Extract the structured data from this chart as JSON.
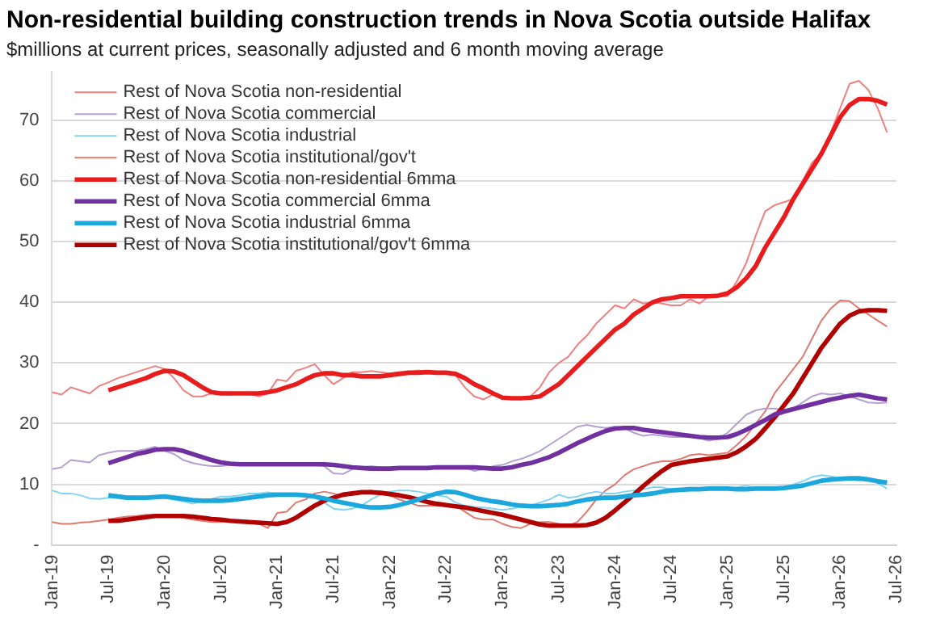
{
  "chart_data": {
    "type": "line",
    "title": "Non-residential building construction trends in Nova Scotia outside Halifax",
    "subtitle": "$millions at current prices, seasonally adjusted and 6 month moving average",
    "categories": [
      "Jan-19",
      null,
      null,
      null,
      null,
      null,
      "Jul-19",
      null,
      null,
      null,
      null,
      null,
      "Jan-20",
      null,
      null,
      null,
      null,
      null,
      "Jul-20",
      null,
      null,
      null,
      null,
      null,
      "Jan-21",
      null,
      null,
      null,
      null,
      null,
      "Jul-21",
      null,
      null,
      null,
      null,
      null,
      "Jan-22",
      null,
      null,
      null,
      null,
      null,
      "Jul-22",
      null,
      null,
      null,
      null,
      null,
      "Jan-23",
      null,
      null,
      null,
      null,
      null,
      "Jul-23",
      null,
      null,
      null,
      null,
      null,
      "Jan-24",
      null,
      null,
      null,
      null,
      null,
      "Jul-24",
      null,
      null,
      null,
      null,
      null,
      "Jan-25",
      null,
      null,
      null,
      null,
      null,
      "Jul-25",
      null,
      null,
      null,
      null,
      null,
      "Jan-26",
      null,
      null,
      null,
      null,
      null,
      "Jul-26"
    ],
    "series": [
      {
        "name": "Rest of Nova Scotia non-residential",
        "color": "#f08080",
        "values": [
          25.2,
          24.8,
          26,
          25.5,
          25,
          26.2,
          26.8,
          27.5,
          28,
          28.5,
          29,
          29.5,
          29,
          27.5,
          25.5,
          24.5,
          24.5,
          25,
          25.2,
          24.8,
          25,
          25,
          24.5,
          25,
          27.3,
          27,
          28.7,
          29.2,
          29.8,
          28,
          26.5,
          27.5,
          28.5,
          28.5,
          28.7,
          28.5,
          28.3,
          28.5,
          28.5,
          28.8,
          28.5,
          28.2,
          28.5,
          28,
          26,
          24.5,
          24,
          24.8,
          24.5,
          24.2,
          24,
          24.5,
          26,
          28.5,
          30,
          31,
          33,
          34.5,
          36.5,
          38,
          39.5,
          39,
          40.5,
          39.8,
          40,
          39.8,
          39.5,
          39.5,
          40.5,
          39.8,
          41,
          41,
          41,
          43.5,
          46.5,
          51,
          55,
          56,
          56.5,
          57,
          60,
          63,
          64.5,
          68,
          72,
          76,
          76.5,
          75,
          72,
          68,
          null
        ]
      },
      {
        "name": "Rest of Nova Scotia commercial",
        "color": "#b4a0d2",
        "values": [
          12.5,
          12.8,
          14,
          13.8,
          13.6,
          14.8,
          15.2,
          15.5,
          15.5,
          15.5,
          15.8,
          16.2,
          15.5,
          15,
          14,
          13.5,
          13.2,
          13,
          13,
          13.2,
          13.3,
          13.3,
          13.2,
          13.3,
          13.2,
          13.2,
          13.3,
          13.3,
          13.2,
          13,
          11.8,
          11.7,
          12.5,
          12.8,
          13,
          12.8,
          12.5,
          12.5,
          12.6,
          12.7,
          12.8,
          12.7,
          13,
          12.9,
          12.8,
          12.2,
          12.5,
          13,
          13.2,
          13.8,
          14.2,
          14.8,
          15.5,
          16.5,
          17.5,
          18.5,
          19.5,
          19.8,
          19.5,
          19.3,
          19.5,
          19.3,
          18.5,
          18,
          18.2,
          18,
          17.8,
          17.8,
          17.8,
          17.6,
          17.2,
          17.5,
          18.5,
          20,
          21.5,
          22.2,
          22.5,
          22.5,
          22.2,
          22.5,
          23.5,
          24.5,
          25,
          24.8,
          25,
          24.5,
          24,
          23.5,
          23.4,
          23.5,
          null
        ]
      },
      {
        "name": "Rest of Nova Scotia industrial",
        "color": "#80d4f0",
        "values": [
          9,
          8.5,
          8.5,
          8.2,
          7.7,
          7.6,
          7.8,
          7.8,
          8,
          8,
          7.8,
          8,
          7.8,
          7.5,
          7.2,
          6.8,
          7.2,
          7.6,
          8,
          8,
          8.2,
          8.5,
          8.5,
          8.7,
          8.5,
          8.2,
          8.2,
          8,
          7.8,
          7,
          6,
          5.8,
          6,
          6.5,
          7.5,
          8.3,
          8.8,
          9,
          9,
          8.8,
          8.5,
          8.2,
          8,
          7,
          6.5,
          6.3,
          6.2,
          6,
          5.8,
          6,
          6.3,
          6.5,
          7,
          7.5,
          8.3,
          7.8,
          8,
          8.5,
          8.8,
          8.5,
          8.5,
          8.8,
          9,
          9.2,
          9.5,
          9.5,
          9.2,
          9.2,
          9.5,
          9.3,
          9.2,
          9.3,
          9.3,
          9.5,
          9.8,
          9.3,
          9.2,
          9.3,
          9.5,
          10,
          10.5,
          11.2,
          11.5,
          11.3,
          11,
          10.8,
          10.6,
          11,
          10.2,
          9.3,
          null
        ]
      },
      {
        "name": "Rest of Nova Scotia institutional/gov't",
        "color": "#e07870",
        "values": [
          3.8,
          3.5,
          3.5,
          3.7,
          3.8,
          4,
          4.2,
          4.5,
          4.7,
          4.8,
          5,
          5,
          5,
          4.8,
          4.5,
          4.2,
          4,
          3.8,
          3.8,
          4,
          4,
          3.8,
          3.5,
          2.8,
          5.3,
          5.5,
          7,
          7.5,
          8.5,
          8.8,
          8.5,
          8,
          8.5,
          8.8,
          9,
          8.5,
          8.2,
          7.5,
          7,
          6.5,
          6.5,
          6.5,
          6.5,
          6.5,
          5.5,
          4.5,
          4.2,
          4.2,
          3.5,
          3,
          2.8,
          3.5,
          3.8,
          3.8,
          3.5,
          3.2,
          3.8,
          5.5,
          7.5,
          9,
          10,
          11.5,
          12.5,
          13,
          13.5,
          13.8,
          13.8,
          14.2,
          14.8,
          15,
          14.8,
          15,
          15.2,
          16.5,
          18,
          20,
          22,
          25,
          27,
          29,
          31,
          34,
          37,
          39,
          40.3,
          40.2,
          39,
          38,
          37,
          36,
          null
        ]
      },
      {
        "name": "Rest of Nova Scotia non-residential 6mma",
        "color": "#e81c1c",
        "values": [
          null,
          null,
          null,
          null,
          null,
          null,
          25.5,
          26,
          26.5,
          27,
          27.5,
          28.2,
          28.7,
          28.6,
          28,
          27,
          26,
          25.2,
          25,
          25,
          25,
          25,
          25,
          25.2,
          25.5,
          26,
          26.5,
          27.3,
          28,
          28.3,
          28.3,
          28,
          28,
          27.8,
          27.8,
          27.8,
          28,
          28.2,
          28.4,
          28.4,
          28.5,
          28.4,
          28.4,
          28.2,
          27.5,
          26.5,
          25.8,
          25,
          24.3,
          24.2,
          24.2,
          24.3,
          24.5,
          25.5,
          26.5,
          28,
          29.5,
          31,
          32.5,
          34,
          35.5,
          36.5,
          38,
          39,
          40,
          40.5,
          40.7,
          41,
          41,
          41,
          41,
          41.1,
          41.5,
          42.5,
          44,
          46,
          49,
          51.5,
          54,
          57,
          59.5,
          62,
          64.5,
          67.5,
          70.5,
          72.5,
          73.5,
          73.5,
          73.2,
          72.6,
          null
        ]
      },
      {
        "name": "Rest of Nova Scotia commercial 6mma",
        "color": "#7030a0",
        "values": [
          null,
          null,
          null,
          null,
          null,
          null,
          13.5,
          14,
          14.5,
          15,
          15.3,
          15.7,
          15.8,
          15.8,
          15.5,
          15,
          14.5,
          14,
          13.6,
          13.4,
          13.3,
          13.3,
          13.3,
          13.3,
          13.3,
          13.3,
          13.3,
          13.3,
          13.3,
          13.3,
          13.2,
          13,
          12.8,
          12.7,
          12.6,
          12.6,
          12.6,
          12.7,
          12.7,
          12.7,
          12.7,
          12.8,
          12.8,
          12.8,
          12.8,
          12.8,
          12.7,
          12.6,
          12.6,
          12.8,
          13.2,
          13.5,
          14,
          14.5,
          15.2,
          16,
          16.8,
          17.5,
          18.2,
          18.8,
          19.2,
          19.3,
          19.3,
          19,
          18.8,
          18.6,
          18.4,
          18.2,
          18,
          17.8,
          17.7,
          17.7,
          17.8,
          18.3,
          19,
          19.8,
          20.6,
          21.5,
          22,
          22.4,
          22.8,
          23.2,
          23.6,
          24,
          24.3,
          24.6,
          24.8,
          24.5,
          24.2,
          24,
          null
        ]
      },
      {
        "name": "Rest of Nova Scotia industrial 6mma",
        "color": "#1ca8dc",
        "values": [
          null,
          null,
          null,
          null,
          null,
          null,
          8.2,
          8,
          7.8,
          7.8,
          7.8,
          7.9,
          8,
          7.8,
          7.6,
          7.4,
          7.3,
          7.3,
          7.3,
          7.4,
          7.6,
          7.8,
          8,
          8.2,
          8.3,
          8.3,
          8.3,
          8.2,
          8,
          7.7,
          7.3,
          7,
          6.7,
          6.4,
          6.2,
          6.2,
          6.3,
          6.6,
          7,
          7.5,
          8,
          8.5,
          8.8,
          8.7,
          8.3,
          7.8,
          7.5,
          7.2,
          7,
          6.7,
          6.5,
          6.4,
          6.4,
          6.5,
          6.6,
          6.8,
          7.2,
          7.5,
          7.7,
          7.8,
          7.8,
          8,
          8.2,
          8.3,
          8.5,
          8.8,
          9,
          9.1,
          9.2,
          9.2,
          9.3,
          9.3,
          9.3,
          9.2,
          9.2,
          9.3,
          9.3,
          9.3,
          9.4,
          9.6,
          9.8,
          10.2,
          10.6,
          10.8,
          10.9,
          11,
          11,
          10.8,
          10.5,
          10.3,
          null
        ]
      },
      {
        "name": "Rest of Nova Scotia institutional/gov't 6mma",
        "color": "#b00000",
        "values": [
          null,
          null,
          null,
          null,
          null,
          null,
          4,
          4,
          4.2,
          4.4,
          4.6,
          4.8,
          4.8,
          4.8,
          4.8,
          4.7,
          4.5,
          4.3,
          4.2,
          4,
          3.9,
          3.8,
          3.7,
          3.6,
          3.5,
          3.8,
          4.5,
          5.5,
          6.5,
          7.3,
          7.8,
          8.3,
          8.5,
          8.7,
          8.7,
          8.6,
          8.4,
          8.2,
          7.9,
          7.5,
          7.1,
          6.8,
          6.6,
          6.4,
          6.2,
          5.9,
          5.6,
          5.3,
          5,
          4.6,
          4.2,
          3.8,
          3.4,
          3.2,
          3.2,
          3.2,
          3.2,
          3.3,
          3.7,
          4.5,
          5.7,
          7,
          8.3,
          9.7,
          11,
          12.2,
          13.2,
          13.5,
          13.8,
          14,
          14.2,
          14.4,
          14.6,
          15.3,
          16.3,
          17.5,
          19.2,
          21,
          23,
          25,
          27.5,
          30,
          32.5,
          34.5,
          36.5,
          37.8,
          38.5,
          38.7,
          38.7,
          38.6,
          null
        ]
      }
    ],
    "ylim": [
      0,
      78
    ],
    "yticks": [
      {
        "value": 0,
        "label": "-"
      },
      10,
      20,
      30,
      40,
      50,
      60,
      70
    ],
    "grid": "y",
    "legend": "top left",
    "marker": "none",
    "line_style": "solid"
  }
}
